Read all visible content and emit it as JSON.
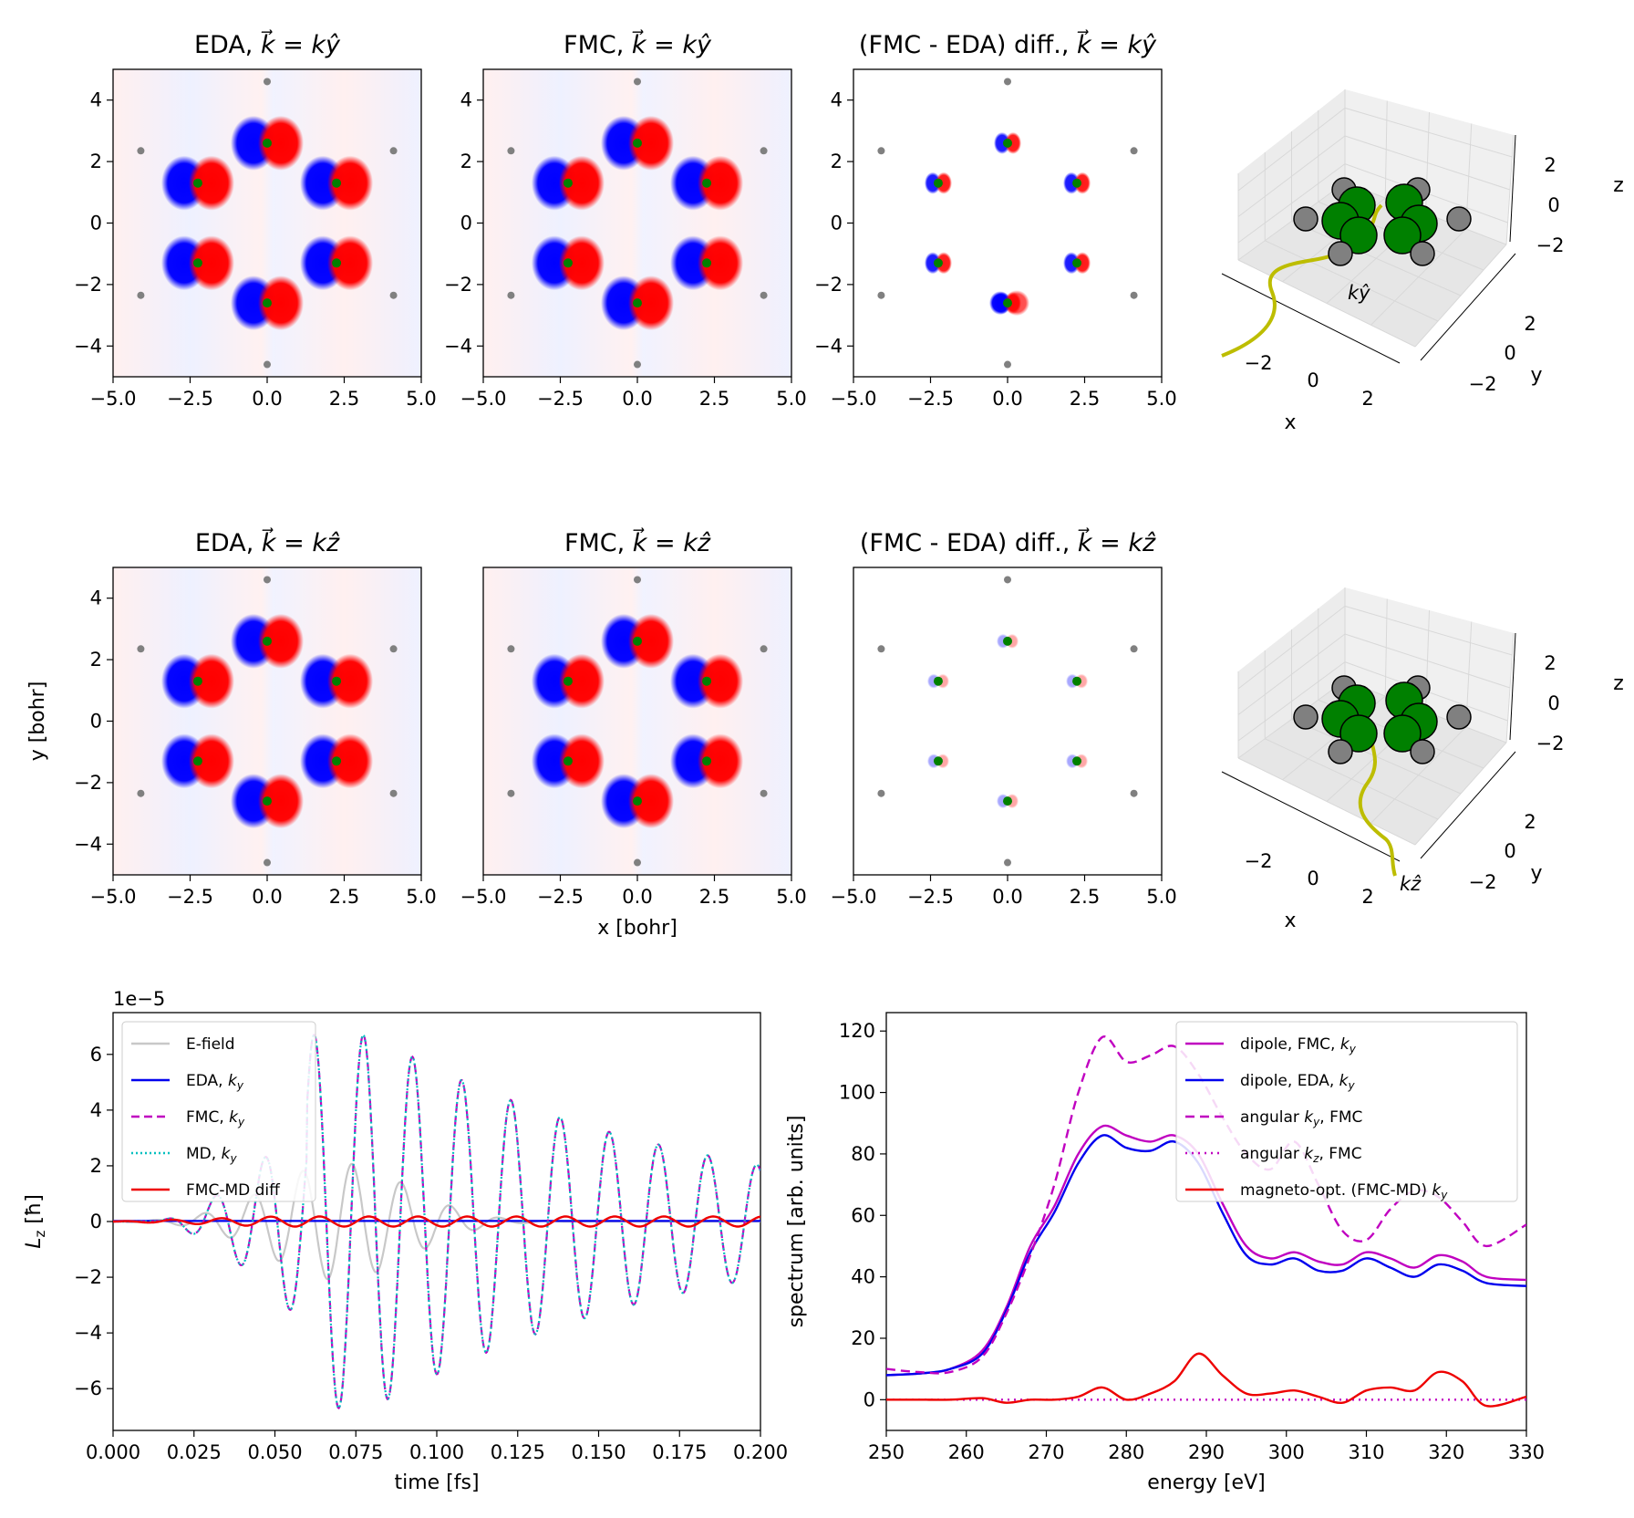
{
  "chart_data": [
    {
      "type": "heatmap",
      "title": "EDA, k = kŷ",
      "xlim": [
        -5,
        5
      ],
      "ylim": [
        -5,
        5
      ],
      "xticks": [
        "−5.0",
        "−2.5",
        "0.0",
        "2.5",
        "5.0"
      ],
      "yticks": [
        "4",
        "2",
        "0",
        "−2",
        "−4"
      ],
      "ylabel": "",
      "xlabel": "",
      "intensity": 1.0
    },
    {
      "type": "heatmap",
      "title": "FMC, k = kŷ",
      "xlim": [
        -5,
        5
      ],
      "ylim": [
        -5,
        5
      ],
      "xticks": [
        "−5.0",
        "−2.5",
        "0.0",
        "2.5",
        "5.0"
      ],
      "yticks": [
        "4",
        "2",
        "0",
        "−2",
        "−4"
      ],
      "ylabel": "",
      "xlabel": "",
      "intensity": 1.0
    },
    {
      "type": "heatmap",
      "title": "(FMC - EDA) diff., k = kŷ",
      "xlim": [
        -5,
        5
      ],
      "ylim": [
        -5,
        5
      ],
      "xticks": [
        "−5.0",
        "−2.5",
        "0.0",
        "2.5",
        "5.0"
      ],
      "yticks": [
        "4",
        "2",
        "0",
        "−2",
        "−4"
      ],
      "ylabel": "",
      "xlabel": "",
      "intensity": 0.45
    },
    {
      "type": "heatmap",
      "title": "EDA, k = kẑ",
      "xlim": [
        -5,
        5
      ],
      "ylim": [
        -5,
        5
      ],
      "xticks": [
        "−5.0",
        "−2.5",
        "0.0",
        "2.5",
        "5.0"
      ],
      "yticks": [
        "4",
        "2",
        "0",
        "−2",
        "−4"
      ],
      "ylabel": "y [bohr]",
      "xlabel": "",
      "intensity": 1.0
    },
    {
      "type": "heatmap",
      "title": "FMC, k = kẑ",
      "xlim": [
        -5,
        5
      ],
      "ylim": [
        -5,
        5
      ],
      "xticks": [
        "−5.0",
        "−2.5",
        "0.0",
        "2.5",
        "5.0"
      ],
      "yticks": [],
      "ylabel": "",
      "xlabel": "x [bohr]",
      "intensity": 1.0
    },
    {
      "type": "heatmap",
      "title": "(FMC - EDA) diff., k = kẑ",
      "xlim": [
        -5,
        5
      ],
      "ylim": [
        -5,
        5
      ],
      "xticks": [
        "−5.0",
        "−2.5",
        "0.0",
        "2.5",
        "5.0"
      ],
      "yticks": [],
      "ylabel": "",
      "xlabel": "",
      "intensity": 0.2
    },
    {
      "type": "line",
      "title": "",
      "multiplier_label": "1e−5",
      "xlabel": "time [fs]",
      "ylabel": "L_z [ħ]",
      "xlim": [
        0,
        0.2
      ],
      "ylim": [
        -7.5,
        7.5
      ],
      "xticks": [
        "0.000",
        "0.025",
        "0.050",
        "0.075",
        "0.100",
        "0.125",
        "0.150",
        "0.175",
        "0.200"
      ],
      "yticks": [
        "6",
        "4",
        "2",
        "0",
        "−2",
        "−4",
        "−6"
      ],
      "series": [
        {
          "name": "E-field",
          "color": "#c8c8c8",
          "dash": ""
        },
        {
          "name": "EDA, k_y",
          "color": "#0000ee",
          "dash": ""
        },
        {
          "name": "FMC, k_y",
          "color": "#c000c0",
          "dash": "9 5"
        },
        {
          "name": "MD, k_y",
          "color": "#00bfbf",
          "dash": "2 3"
        },
        {
          "name": "FMC-MD diff",
          "color": "#ee0000",
          "dash": ""
        }
      ]
    },
    {
      "type": "line",
      "title": "",
      "xlabel": "energy [eV]",
      "ylabel": "spectrum [arb. units]",
      "xlim": [
        250,
        330
      ],
      "ylim": [
        -10,
        126
      ],
      "xticks": [
        "250",
        "260",
        "270",
        "280",
        "290",
        "300",
        "310",
        "320",
        "330"
      ],
      "yticks": [
        "120",
        "100",
        "80",
        "60",
        "40",
        "20",
        "0"
      ],
      "x": [
        250,
        254,
        258,
        262,
        265,
        268,
        271,
        274,
        277,
        280,
        283,
        286,
        289,
        292,
        295,
        298,
        301,
        304,
        307,
        310,
        313,
        316,
        319,
        322,
        325,
        330
      ],
      "series": [
        {
          "name": "dipole, FMC, k_y",
          "color": "#c000c0",
          "dash": "",
          "values": [
            8,
            8.5,
            10,
            16,
            30,
            50,
            63,
            80,
            89,
            86,
            84,
            86,
            80,
            64,
            50,
            46,
            48,
            45,
            44,
            48,
            46,
            43,
            47,
            45,
            40,
            39
          ]
        },
        {
          "name": "dipole, EDA, k_y",
          "color": "#0000ee",
          "dash": "",
          "values": [
            8,
            8.5,
            10,
            15,
            29,
            48,
            61,
            77,
            86,
            82,
            81,
            84,
            77,
            61,
            47,
            44,
            46,
            42,
            42,
            46,
            43,
            40,
            44,
            42,
            38,
            37
          ]
        },
        {
          "name": "angular k_y, FMC",
          "color": "#c000c0",
          "dash": "10 6",
          "values": [
            10,
            9,
            9,
            14,
            28,
            47,
            70,
            100,
            118,
            110,
            112,
            115,
            106,
            92,
            80,
            75,
            84,
            70,
            55,
            52,
            62,
            68,
            66,
            58,
            50,
            57
          ]
        },
        {
          "name": "angular k_z, FMC",
          "color": "#c000c0",
          "dash": "2 5",
          "values": [
            0,
            0,
            0,
            0,
            0,
            0,
            0,
            0,
            0,
            0,
            0,
            0,
            0,
            0,
            0,
            0,
            0,
            0,
            0,
            0,
            0,
            0,
            0,
            0,
            0,
            0
          ]
        },
        {
          "name": "magneto-opt. (FMC-MD) k_y",
          "color": "#ee0000",
          "dash": "",
          "values": [
            0,
            0,
            0,
            0.5,
            -1,
            0,
            0,
            1,
            4,
            0,
            2,
            6,
            15,
            8,
            2,
            2,
            3,
            1,
            -1,
            3,
            4,
            3,
            9,
            6,
            -2,
            1
          ]
        }
      ]
    }
  ],
  "insets": [
    {
      "k_label": "kŷ",
      "xlabel": "x",
      "ylabel": "y",
      "zlabel": "z",
      "xticks": [
        "−2",
        "0",
        "2"
      ],
      "yticks": [
        "2",
        "0",
        "−2"
      ],
      "zticks": [
        "2",
        "0",
        "−2"
      ]
    },
    {
      "k_label": "kẑ",
      "xlabel": "x",
      "ylabel": "y",
      "zlabel": "z",
      "xticks": [
        "−2",
        "0",
        "2"
      ],
      "yticks": [
        "2",
        "0",
        "−2"
      ],
      "zticks": [
        "2",
        "0",
        "−2"
      ]
    }
  ],
  "colors": {
    "positive": "#ff0000",
    "negative": "#0000ff",
    "carbon": "#008000",
    "hydrogen": "#808080",
    "k_arrow": "#bdbd00"
  }
}
